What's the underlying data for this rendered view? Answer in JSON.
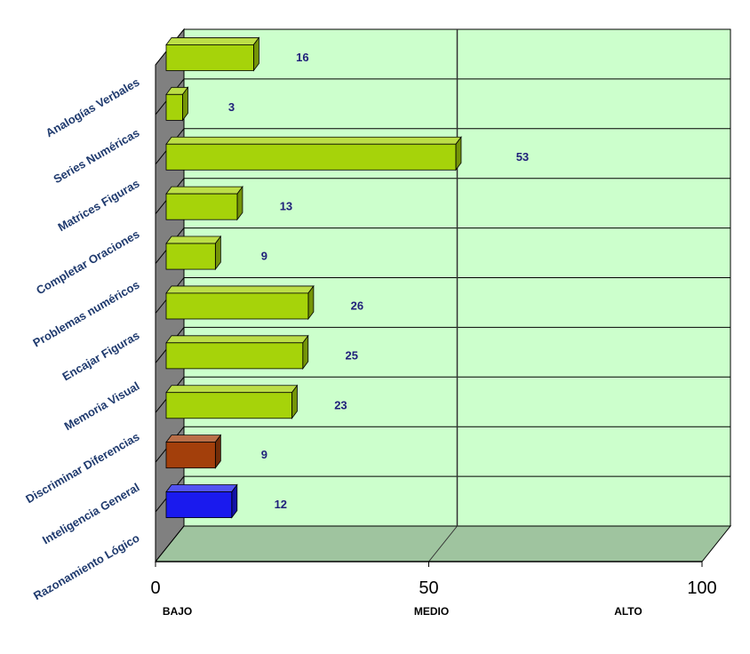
{
  "chart_data": {
    "type": "bar",
    "orientation": "horizontal",
    "categories": [
      "Analogías Verbales",
      "Series Numéricas",
      "Matrices Figuras",
      "Completar Oraciones",
      "Problemas numéricos",
      "Encajar Figuras",
      "Memoria Visual",
      "Discriminar Diferencias",
      "Inteligencia General",
      "Razonamiento Lógico"
    ],
    "values": [
      16,
      3,
      53,
      13,
      9,
      26,
      25,
      23,
      9,
      12
    ],
    "bar_colors": [
      "#a6d30a",
      "#a6d30a",
      "#a6d30a",
      "#a6d30a",
      "#a6d30a",
      "#a6d30a",
      "#a6d30a",
      "#a6d30a",
      "#a33f0b",
      "#1a1aee"
    ],
    "xlim": [
      0,
      100
    ],
    "x_ticks": [
      "0",
      "50",
      "100"
    ],
    "bands": [
      "BAJO",
      "MEDIO",
      "ALTO"
    ],
    "grid": true,
    "wall_color": "#ccffcc",
    "floor_color": "#9fc49f",
    "side_wall_color": "#808080",
    "title": "",
    "xlabel": "",
    "ylabel": ""
  }
}
